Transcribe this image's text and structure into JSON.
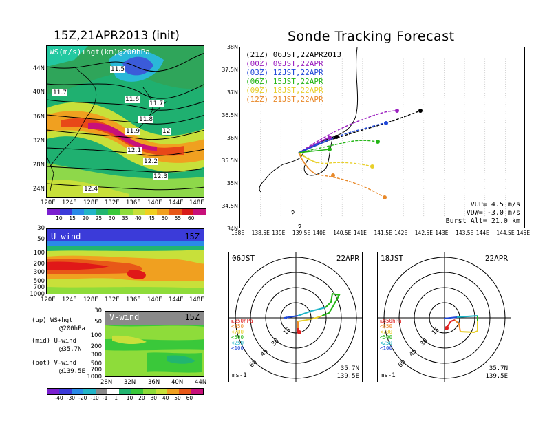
{
  "left": {
    "title": "15Z,21APR2013 (init)",
    "map_label": "WS(m/s)+hgt(km)@200hPa",
    "lat_ticks": [
      "44N",
      "40N",
      "36N",
      "32N",
      "28N",
      "24N"
    ],
    "lon_ticks": [
      "120E",
      "124E",
      "128E",
      "132E",
      "136E",
      "140E",
      "144E",
      "148E"
    ],
    "contour_labels": [
      "11.5",
      "11.7",
      "11.6",
      "11.7",
      "11.8",
      "11.9",
      "12",
      "12.1",
      "12.2",
      "12.3",
      "12.4"
    ],
    "ws_colorbar_ticks": [
      "10",
      "15",
      "20",
      "25",
      "30",
      "35",
      "40",
      "45",
      "50",
      "55",
      "60"
    ],
    "u_panel": {
      "label": "U-wind",
      "time": "15Z",
      "p_ticks": [
        "30",
        "50",
        "100",
        "200",
        "300",
        "500",
        "700",
        "1000"
      ],
      "lon_ticks": [
        "120E",
        "124E",
        "128E",
        "132E",
        "136E",
        "140E",
        "144E",
        "148E"
      ]
    },
    "v_panel": {
      "label": "V-wind",
      "time": "15Z",
      "p_ticks": [
        "30",
        "50",
        "100",
        "200",
        "300",
        "500",
        "700",
        "1000"
      ],
      "lat_ticks": [
        "28N",
        "32N",
        "36N",
        "40N",
        "44N"
      ]
    },
    "notes": {
      "up1": "(up) WS+hgt",
      "up2": "@200hPa",
      "mid1": "(mid) U-wind",
      "mid2": "@35.7N",
      "bot1": "(bot) V-wind",
      "bot2": "@139.5E"
    },
    "uv_colorbar_ticks": [
      "-40",
      "-30",
      "-20",
      "-10",
      "-1",
      "1",
      "10",
      "20",
      "30",
      "40",
      "50",
      "60"
    ]
  },
  "right": {
    "title": "Sonde Tracking Forecast",
    "legend": [
      {
        "code": "(21Z)",
        "label": "06JST,22APR2013",
        "color": "#000000"
      },
      {
        "code": "(00Z)",
        "label": "09JST,22APR",
        "color": "#9b1fc0"
      },
      {
        "code": "(03Z)",
        "label": "12JST,22APR",
        "color": "#1f47d9"
      },
      {
        "code": "(06Z)",
        "label": "15JST,22APR",
        "color": "#22b514"
      },
      {
        "code": "(09Z)",
        "label": "18JST,22APR",
        "color": "#e8cf2a"
      },
      {
        "code": "(12Z)",
        "label": "21JST,22APR",
        "color": "#e8892a"
      }
    ],
    "lat_ticks": [
      "38N",
      "37.5N",
      "37N",
      "36.5N",
      "36N",
      "35.5N",
      "35N",
      "34.5N",
      "34N"
    ],
    "lon_ticks": [
      "138E",
      "138.5E",
      "139E",
      "139.5E",
      "140E",
      "140.5E",
      "141E",
      "141.5E",
      "142E",
      "142.5E",
      "143E",
      "143.5E",
      "144E",
      "144.5E",
      "145E"
    ],
    "params": {
      "vup": "VUP= 4.5 m/s",
      "vdw": "VDW= -3.0 m/s",
      "burst": "Burst Alt= 21.0 km"
    },
    "hodographs": [
      {
        "time": "06JST",
        "date": "22APR",
        "loc1": "35.7N",
        "loc2": "139.5E",
        "unit": "ms-1",
        "rings": [
          "15",
          "30",
          "45",
          "60"
        ]
      },
      {
        "time": "18JST",
        "date": "22APR",
        "loc1": "35.7N",
        "loc2": "139.5E",
        "unit": "ms-1",
        "rings": [
          "15",
          "30",
          "45",
          "60"
        ]
      }
    ],
    "pressure_legend": [
      {
        "label": "≥850hPa",
        "color": "#e01e1e"
      },
      {
        "label": "<850",
        "color": "#f0892a"
      },
      {
        "label": "<700",
        "color": "#e8cf2a"
      },
      {
        "label": "<500",
        "color": "#22b514"
      },
      {
        "label": "<250",
        "color": "#1fb5c8"
      },
      {
        "label": "<100",
        "color": "#1f47d9"
      }
    ]
  }
}
